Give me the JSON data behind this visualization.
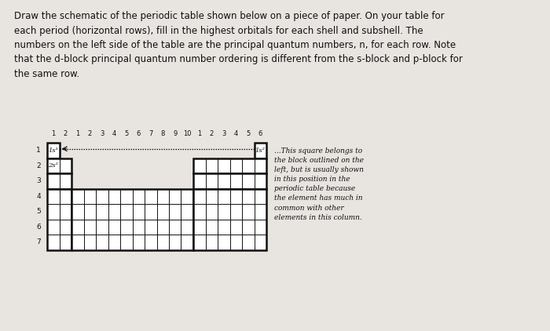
{
  "title_text": "Draw the schematic of the periodic table shown below on a piece of paper. On your table for\neach period (horizontal rows), fill in the highest orbitals for each shell and subshell. The\nnumbers on the left side of the table are the principal quantum numbers, n, for each row. Note\nthat the d-block principal quantum number ordering is different from the s-block and p-block for\nthe same row.",
  "col_labels_s": [
    "1",
    "2"
  ],
  "col_labels_d": [
    "1",
    "2",
    "3",
    "4",
    "5",
    "6",
    "7",
    "8",
    "9",
    "10"
  ],
  "col_labels_p": [
    "1",
    "2",
    "3",
    "4",
    "5",
    "6"
  ],
  "row_labels": [
    "1",
    "2",
    "3",
    "4",
    "5",
    "6",
    "7"
  ],
  "label_1s1": "1s¹",
  "label_2s2": "2s²",
  "label_1s2": "1s²",
  "annotation_text": "...This square belongs to\nthe block outlined on the\nleft, but is usually shown\nin this position in the\nperiodic table because\nthe element has much in\ncommon with other\nelements in this column.",
  "bg_color": "#e8e4e0",
  "box_edge_color": "#111111",
  "text_color": "#111111",
  "title_fontsize": 8.5,
  "col_label_fontsize": 6.0,
  "row_label_fontsize": 6.5,
  "cell_label_fontsize": 6.0,
  "ann_fontsize": 6.5
}
